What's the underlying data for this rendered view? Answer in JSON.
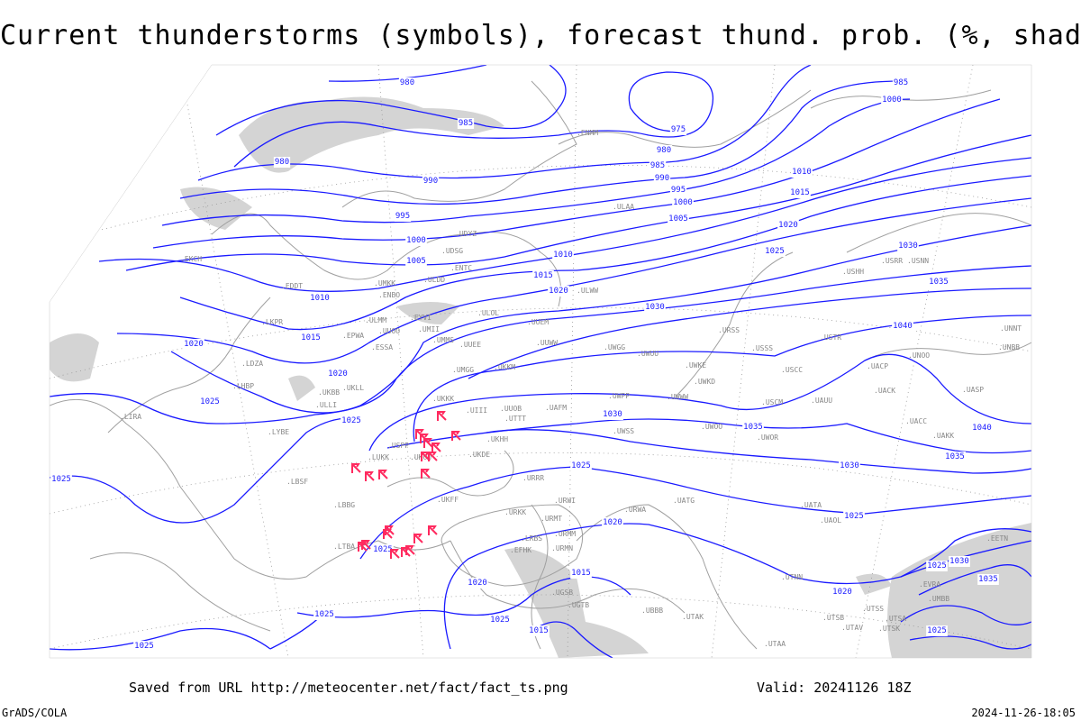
{
  "title": "Current thunderstorms (symbols), forecast thund. prob. (%, shaded)",
  "footer": {
    "source": "Saved from URL http://meteocenter.net/fact/fact_ts.png",
    "valid": "Valid: 20241126 18Z",
    "software": "GrADS/COLA",
    "timestamp": "2024-11-26-18:05"
  },
  "colors": {
    "isobars": "#1a1aff",
    "thunderstorm_symbols": "#ff2a5f",
    "shading": "#d4d4d4",
    "coastlines": "#a0a0a0"
  },
  "legend": {
    "isobars_unit": "hPa",
    "thunderstorm_symbol_icon": "thunderstorm-symbol"
  },
  "isobar_labels": [
    "980",
    "985",
    "980",
    "990",
    "995",
    "1000",
    "1005",
    "1010",
    "1015",
    "1020",
    "1020",
    "1025",
    "1025",
    "1025",
    "975",
    "980",
    "985",
    "990",
    "995",
    "1000",
    "1005",
    "1010",
    "1015",
    "1020",
    "1025",
    "1015",
    "1010",
    "1020",
    "1030",
    "1035",
    "1040",
    "1030",
    "1035",
    "1030",
    "1040",
    "1035",
    "1025",
    "1020",
    "1025",
    "1020",
    "1020",
    "1025",
    "1025",
    "1025",
    "1025",
    "1015",
    "1015",
    "985",
    "1000",
    "1030",
    "1030",
    "1035",
    "1025",
    "1025"
  ],
  "stations": [
    "ENMM",
    "ENBO",
    "ENTC",
    "ULLI",
    "ULAA",
    "ULMM",
    "ULOL",
    "ULWW",
    "UUEM",
    "UUWW",
    "UUEE",
    "UMMS",
    "UMKK",
    "UMGG",
    "EYVI",
    "EPWA",
    "UKLL",
    "UKBB",
    "UKKK",
    "UKOO",
    "UKFF",
    "UKDE",
    "UKHH",
    "URRR",
    "URKK",
    "URMT",
    "URMM",
    "URMN",
    "URWI",
    "URWA",
    "UATG",
    "UATA",
    "UAOL",
    "UACC",
    "UAKK",
    "USSS",
    "USCC",
    "USCM",
    "UAUU",
    "UWOO",
    "UWOR",
    "UWWW",
    "UWKE",
    "UWKD",
    "UWPP",
    "UWSS",
    "UWGG",
    "UWUU",
    "USNN",
    "USHH",
    "USRR",
    "USTR",
    "UNOO",
    "UNBB",
    "UNNT",
    "UASP",
    "UACP",
    "UACK",
    "UTAA",
    "UTSS",
    "UTAK",
    "UTNN",
    "UTAV",
    "UTSA",
    "UTSB",
    "UTSK",
    "UBBB",
    "UGTB",
    "UGSB",
    "LTBA",
    "LBSF",
    "LBBG",
    "LRBS",
    "LYBE",
    "LHBP",
    "LIRA",
    "LKPR",
    "LDZA",
    "EDDT",
    "EKCH",
    "UDYZ",
    "UDSG",
    "ULDD",
    "ESSA",
    "EFHK",
    "EETN",
    "EVRA",
    "UMBB",
    "URSS",
    "UAFM",
    "UTTT",
    "UIII",
    "USPP",
    "UUOO",
    "UUOB",
    "UKKM",
    "LUKK",
    "UMII"
  ],
  "thunderstorm_count": 21
}
